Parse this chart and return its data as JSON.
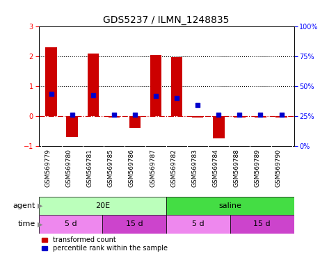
{
  "title": "GDS5237 / ILMN_1248835",
  "categories": [
    "GSM569779",
    "GSM569780",
    "GSM569781",
    "GSM569785",
    "GSM569786",
    "GSM569787",
    "GSM569782",
    "GSM569783",
    "GSM569784",
    "GSM569788",
    "GSM569789",
    "GSM569790"
  ],
  "bar_values": [
    2.3,
    -0.7,
    2.1,
    -0.05,
    -0.4,
    2.05,
    1.98,
    -0.05,
    -0.75,
    -0.05,
    -0.05,
    -0.05
  ],
  "blue_dot_values": [
    0.75,
    0.05,
    0.7,
    0.05,
    0.05,
    0.68,
    0.62,
    0.38,
    0.05,
    0.05,
    0.05,
    0.05
  ],
  "bar_color": "#cc0000",
  "blue_dot_color": "#0000cc",
  "ylim_left": [
    -1,
    3
  ],
  "ylim_right": [
    0,
    100
  ],
  "yticks_left": [
    -1,
    0,
    1,
    2,
    3
  ],
  "yticks_right": [
    0,
    25,
    50,
    75,
    100
  ],
  "ytick_labels_right": [
    "0%",
    "25%",
    "50%",
    "75%",
    "100%"
  ],
  "hline_color": "#cc0000",
  "hline_style": "-.",
  "dotted_lines": [
    1,
    2
  ],
  "dotted_color": "black",
  "agent_groups": [
    {
      "label": "20E",
      "start": 0,
      "end": 6,
      "color": "#bbffbb"
    },
    {
      "label": "saline",
      "start": 6,
      "end": 12,
      "color": "#44dd44"
    }
  ],
  "time_groups": [
    {
      "label": "5 d",
      "start": 0,
      "end": 3,
      "color": "#ee88ee"
    },
    {
      "label": "15 d",
      "start": 3,
      "end": 6,
      "color": "#cc44cc"
    },
    {
      "label": "5 d",
      "start": 6,
      "end": 9,
      "color": "#ee88ee"
    },
    {
      "label": "15 d",
      "start": 9,
      "end": 12,
      "color": "#cc44cc"
    }
  ],
  "legend_red_label": "transformed count",
  "legend_blue_label": "percentile rank within the sample",
  "agent_label": "agent",
  "time_label": "time",
  "title_fontsize": 10,
  "tick_fontsize": 7,
  "label_fontsize": 6.5,
  "bar_width": 0.55,
  "bg_color": "#ffffff",
  "plot_bg_color": "#ffffff",
  "label_bg_color": "#d8d8d8",
  "label_fontsize_row": 8
}
